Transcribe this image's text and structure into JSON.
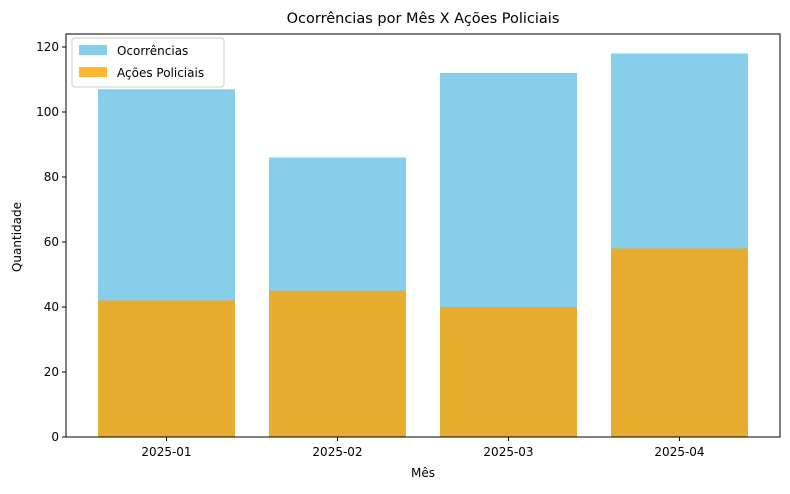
{
  "chart_data": {
    "type": "bar",
    "title": "Ocorrências por Mês X Ações Policiais",
    "xlabel": "Mês",
    "ylabel": "Quantidade",
    "categories": [
      "2025-01",
      "2025-02",
      "2025-03",
      "2025-04"
    ],
    "series": [
      {
        "name": "Ocorrências",
        "values": [
          107,
          86,
          112,
          118
        ],
        "color": "#87CEEB"
      },
      {
        "name": "Ações Policiais",
        "values": [
          42,
          45,
          40,
          58
        ],
        "color": "#FFA500",
        "opacity": 0.8
      }
    ],
    "overlay": true,
    "ylim": [
      0,
      124
    ],
    "yticks": [
      0,
      20,
      40,
      60,
      80,
      100,
      120
    ],
    "grid": false,
    "legend_position": "top-left"
  }
}
